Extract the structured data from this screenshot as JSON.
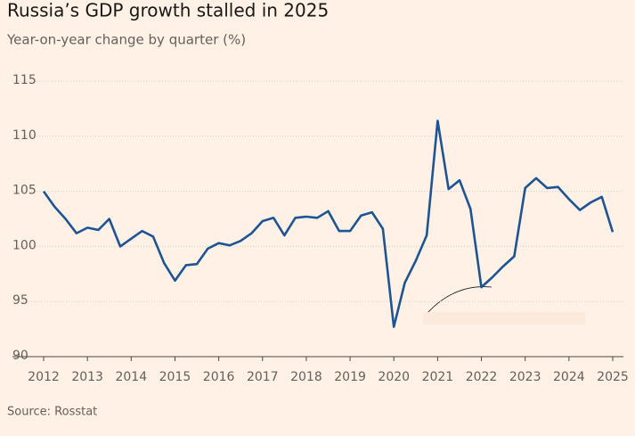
{
  "chart_data": {
    "type": "line",
    "title": "Russia’s GDP growth stalled in 2025",
    "subtitle": "Year-on-year change by quarter (%)",
    "source": "Source: Rosstat",
    "x": [
      2012,
      2012.25,
      2012.5,
      2012.75,
      2013,
      2013.25,
      2013.5,
      2013.75,
      2014,
      2014.25,
      2014.5,
      2014.75,
      2015,
      2015.25,
      2015.5,
      2015.75,
      2016,
      2016.25,
      2016.5,
      2016.75,
      2017,
      2017.25,
      2017.5,
      2017.75,
      2018,
      2018.25,
      2018.5,
      2018.75,
      2019,
      2019.25,
      2019.5,
      2019.75,
      2020,
      2020.25,
      2020.5,
      2020.75,
      2021,
      2021.25,
      2021.5,
      2021.75,
      2022,
      2022.25,
      2022.5,
      2022.75,
      2023,
      2023.25,
      2023.5,
      2023.75,
      2024,
      2024.25,
      2024.5,
      2024.75,
      2025
    ],
    "values": [
      105.0,
      103.6,
      102.5,
      101.2,
      101.7,
      101.5,
      102.5,
      100.0,
      100.7,
      101.4,
      100.9,
      98.5,
      96.9,
      98.3,
      98.4,
      99.8,
      100.3,
      100.1,
      100.5,
      101.2,
      102.3,
      102.6,
      101.0,
      102.6,
      102.7,
      102.6,
      103.2,
      101.4,
      101.4,
      102.8,
      103.1,
      101.6,
      92.7,
      96.7,
      98.7,
      101.0,
      111.4,
      105.2,
      106.0,
      103.4,
      96.3,
      97.2,
      98.2,
      99.1,
      105.3,
      106.2,
      105.3,
      105.4,
      104.3,
      103.3,
      104.0,
      104.5,
      101.3
    ],
    "color": "#1d5496",
    "xlim": [
      2012,
      2025
    ],
    "xticks": [
      2012,
      2013,
      2014,
      2015,
      2016,
      2017,
      2018,
      2019,
      2020,
      2021,
      2022,
      2023,
      2024,
      2025
    ],
    "ylim": [
      90,
      115
    ],
    "yticks": [
      90,
      95,
      100,
      105,
      110,
      115
    ],
    "grid": true
  }
}
